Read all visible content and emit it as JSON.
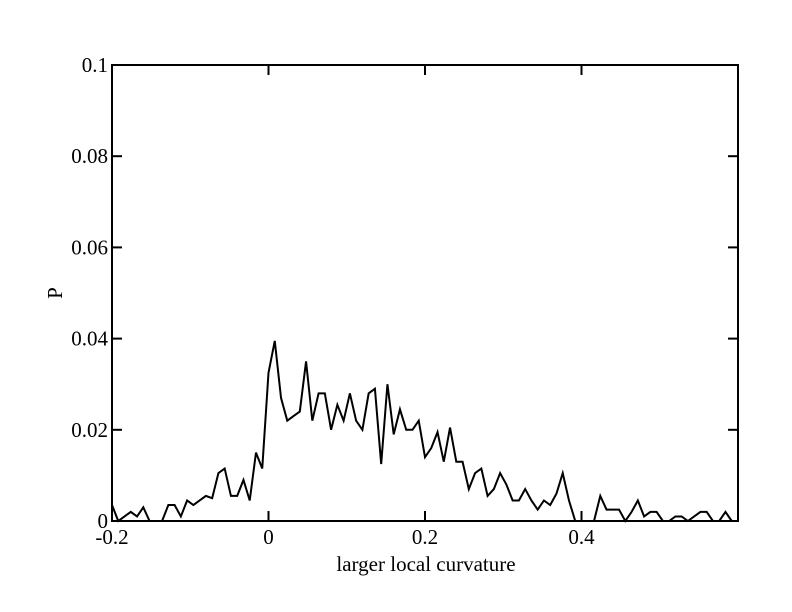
{
  "chart_data": {
    "type": "line",
    "x_label": "larger local curvature",
    "y_label": "P",
    "xlim": [
      -0.2,
      0.6
    ],
    "ylim": [
      0,
      0.1
    ],
    "xticks": [
      -0.2,
      0,
      0.2,
      0.4
    ],
    "yticks": [
      0,
      0.02,
      0.04,
      0.06,
      0.08,
      0.1
    ],
    "x": [
      -0.2,
      -0.192,
      -0.184,
      -0.176,
      -0.168,
      -0.16,
      -0.152,
      -0.144,
      -0.136,
      -0.128,
      -0.12,
      -0.112,
      -0.104,
      -0.096,
      -0.088,
      -0.08,
      -0.072,
      -0.064,
      -0.056,
      -0.048,
      -0.04,
      -0.032,
      -0.024,
      -0.016,
      -0.008,
      0,
      0.008,
      0.016,
      0.024,
      0.032,
      0.04,
      0.048,
      0.056,
      0.064,
      0.072,
      0.08,
      0.088,
      0.096,
      0.104,
      0.112,
      0.12,
      0.128,
      0.136,
      0.144,
      0.152,
      0.16,
      0.168,
      0.176,
      0.184,
      0.192,
      0.2,
      0.208,
      0.216,
      0.224,
      0.232,
      0.24,
      0.248,
      0.256,
      0.264,
      0.272,
      0.28,
      0.288,
      0.296,
      0.304,
      0.312,
      0.32,
      0.328,
      0.336,
      0.344,
      0.352,
      0.36,
      0.368,
      0.376,
      0.384,
      0.392,
      0.4,
      0.408,
      0.416,
      0.424,
      0.432,
      0.44,
      0.448,
      0.456,
      0.464,
      0.472,
      0.48,
      0.488,
      0.496,
      0.504,
      0.512,
      0.52,
      0.528,
      0.536,
      0.544,
      0.552,
      0.56,
      0.568,
      0.576,
      0.584,
      0.592
    ],
    "series": [
      {
        "color": "#000000",
        "values": [
          0.0035,
          0,
          0.001,
          0.002,
          0.001,
          0.003,
          0,
          0,
          0,
          0.0035,
          0.0035,
          0.001,
          0.0045,
          0.0035,
          0.0045,
          0.0055,
          0.005,
          0.0105,
          0.0115,
          0.0055,
          0.0055,
          0.009,
          0.0045,
          0.015,
          0.0115,
          0.0325,
          0.0395,
          0.027,
          0.022,
          0.023,
          0.024,
          0.035,
          0.022,
          0.028,
          0.028,
          0.02,
          0.0255,
          0.022,
          0.028,
          0.022,
          0.02,
          0.028,
          0.029,
          0.0125,
          0.03,
          0.019,
          0.0245,
          0.02,
          0.02,
          0.022,
          0.014,
          0.016,
          0.0195,
          0.013,
          0.0205,
          0.013,
          0.013,
          0.007,
          0.0105,
          0.0115,
          0.0055,
          0.007,
          0.0105,
          0.008,
          0.0045,
          0.0045,
          0.007,
          0.0045,
          0.0025,
          0.0045,
          0.0035,
          0.006,
          0.0105,
          0.0045,
          0,
          0,
          0,
          0,
          0.0055,
          0.0025,
          0.0025,
          0.0025,
          0,
          0.002,
          0.0045,
          0.001,
          0.002,
          0.002,
          0,
          0,
          0.001,
          0.001,
          0,
          0.001,
          0.002,
          0.002,
          0,
          0,
          0.002,
          0
        ]
      }
    ]
  }
}
